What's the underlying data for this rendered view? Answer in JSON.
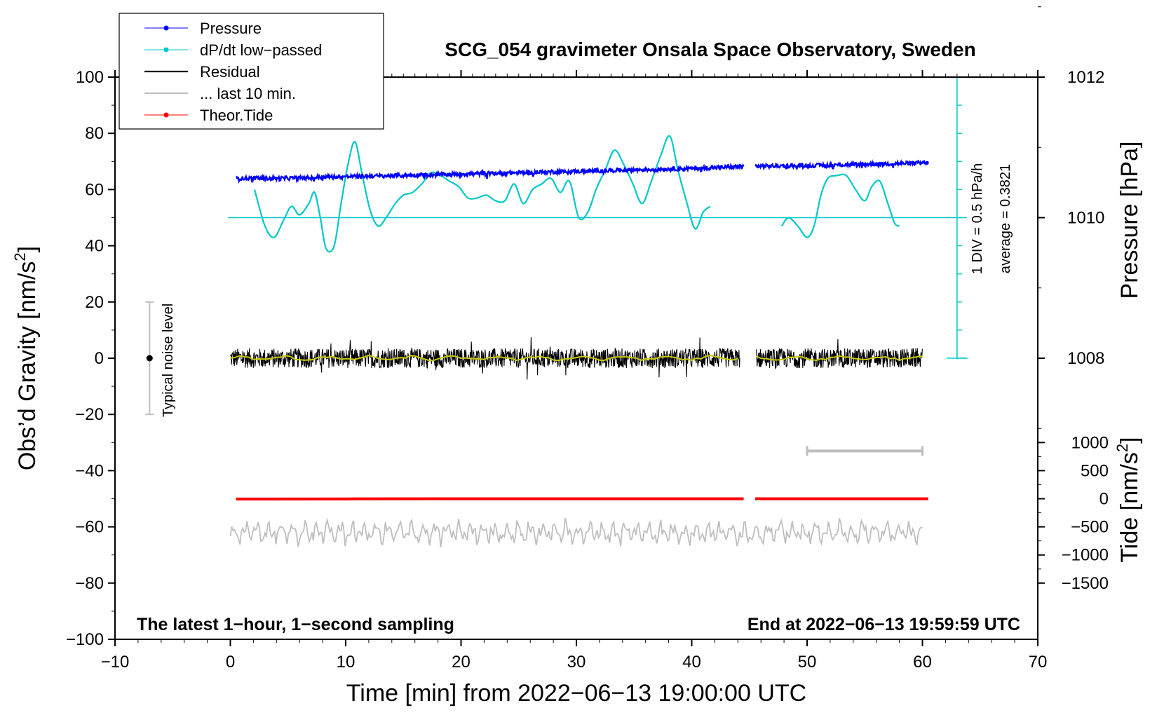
{
  "chart_data": {
    "type": "line",
    "title": "SCG_054 gravimeter Onsala Space Observatory, Sweden",
    "xlabel": "Time [min] from 2022−06−13 19:00:00 UTC",
    "ylabel": "Obs’d Gravity [nm/s²]",
    "ylabel_main": "Obs’d Gravity [nm/s",
    "ylabel_sup": "2",
    "ylabel_end": "]",
    "xlim": [
      -10,
      70
    ],
    "ylim": [
      -100,
      100
    ],
    "x_ticks": [
      -10,
      0,
      10,
      20,
      30,
      40,
      50,
      60,
      70
    ],
    "x_tick_labels": [
      "−10",
      "0",
      "10",
      "20",
      "30",
      "40",
      "50",
      "60",
      "70"
    ],
    "y_ticks": [
      -100,
      -80,
      -60,
      -40,
      -20,
      0,
      20,
      40,
      60,
      80,
      100
    ],
    "y_tick_labels": [
      "−100",
      "−80",
      "−60",
      "−40",
      "−20",
      "0",
      "20",
      "40",
      "60",
      "80",
      "100"
    ],
    "pressure_axis": {
      "label": "Pressure [hPa]",
      "ticks": [
        1008,
        1010,
        1012
      ],
      "tick_labels": [
        "1008",
        "1010",
        "1012"
      ],
      "ref_value": 1010,
      "ref_gravity_y": 50,
      "gravity_per_hPa": 25
    },
    "tide_axis": {
      "label_main": "Tide [nm/s",
      "label_sup": "2",
      "label_end": "]",
      "ticks": [
        -1500,
        -1000,
        -500,
        0,
        500,
        1000
      ],
      "tick_labels": [
        "−1500",
        "−1000",
        "−500",
        "0",
        "500",
        "1000"
      ],
      "ref_value": 0,
      "ref_gravity_y": -50,
      "gravity_per_unit": 0.02
    },
    "dpdt_scale": {
      "x": 63,
      "y_from": 0,
      "y_to": 100,
      "label_div": "1 DIV = 0.5 hPa/h",
      "label_avg": "average = 0.3821",
      "baseline_y": 50
    },
    "noise_bar": {
      "x": -7,
      "y_center": 0,
      "y_low": -20,
      "y_high": 20,
      "label": "Typical noise level"
    },
    "last10_bar": {
      "x_from": 50,
      "x_to": 60,
      "y": -33
    },
    "footer_left": "The latest 1−hour, 1−second sampling",
    "footer_right": "End at 2022−06−13 19:59:59 UTC",
    "legend": [
      {
        "name": "Pressure",
        "color": "#0000ff",
        "marker": true
      },
      {
        "name": "dP/dt low−passed",
        "color": "#00c8c8",
        "marker": true
      },
      {
        "name": "Residual",
        "color": "#000000",
        "marker": false
      },
      {
        "name": "... last 10 min.",
        "color": "#bebebe",
        "marker": false
      },
      {
        "name": "Theor.Tide",
        "color": "#ff0000",
        "marker": true
      }
    ],
    "series": [
      {
        "name": "Pressure",
        "axis": "gravity_y",
        "color": "#0000ff",
        "x": [
          0.5,
          5,
          10,
          15,
          20,
          25,
          30,
          35,
          40,
          44.5
        ],
        "y": [
          64,
          64,
          64.6,
          65,
          65.5,
          66,
          66.5,
          67,
          67.5,
          68.2
        ],
        "segment2": {
          "x": [
            45.5,
            50,
            55,
            60.5
          ],
          "y": [
            68.3,
            68.5,
            69,
            69.5
          ]
        }
      },
      {
        "name": "dP/dt low−passed",
        "axis": "gravity_y",
        "color": "#00c8c8",
        "x": [
          2.1,
          3,
          3.8,
          4.6,
          5.3,
          6,
          6.8,
          7.3,
          7.8,
          8.3,
          9,
          9.6,
          10.2,
          10.8,
          11.4,
          12.1,
          12.8,
          13.5,
          14.3,
          15,
          15.8,
          16.6,
          17.4,
          18.2,
          19,
          19.8,
          20.6,
          21.4,
          22.2,
          23.0,
          23.8,
          24.6,
          25.4,
          26.2,
          27.0,
          27.8,
          28.6,
          29.4,
          30.2,
          31.0,
          31.7,
          32.5,
          33.3,
          34.1,
          34.9,
          35.7,
          36.5,
          37.3,
          38.1,
          38.8,
          39.6,
          40.3,
          41.0,
          41.6
        ],
        "y": [
          60,
          47,
          43,
          49,
          54,
          51,
          55,
          59,
          50,
          39,
          40,
          55,
          69,
          77,
          66,
          53,
          47,
          50,
          55,
          58,
          59,
          62,
          66,
          65,
          63,
          61,
          57,
          57,
          58,
          56,
          56,
          62,
          55,
          60,
          62,
          64,
          59,
          63,
          50,
          52,
          60,
          67,
          74,
          69,
          62,
          55,
          63,
          72,
          79,
          67,
          55,
          46,
          52,
          54
        ],
        "segment2": {
          "x": [
            47.8,
            48.4,
            49.2,
            50,
            50.6,
            51.2,
            51.8,
            52.6,
            53.4,
            54.2,
            55,
            55.6,
            56.3,
            57,
            57.6,
            58
          ],
          "y": [
            47,
            50,
            47,
            43,
            47,
            58,
            64,
            65,
            65,
            60,
            56,
            61,
            63,
            55,
            48,
            47
          ]
        }
      },
      {
        "name": "Residual",
        "axis": "gravity_y",
        "color": "#000000",
        "smoothed_color": "#c8c800",
        "x_range": [
          0,
          60
        ],
        "gap": [
          44.2,
          45.6
        ],
        "amplitude": 3.5,
        "center": 0
      },
      {
        "name": "... last 10 min.",
        "axis": "gravity_y",
        "color": "#bebebe",
        "x_range": [
          0,
          60
        ],
        "amplitude": 5,
        "center": -62
      },
      {
        "name": "Theor.Tide",
        "axis": "tide_y",
        "color": "#ff0000",
        "x": [
          0.5,
          10,
          20,
          30,
          44.5
        ],
        "y": [
          -5,
          -3,
          0,
          0,
          0
        ],
        "segment2": {
          "x": [
            45.5,
            60.5
          ],
          "y": [
            0,
            0
          ]
        }
      }
    ]
  }
}
